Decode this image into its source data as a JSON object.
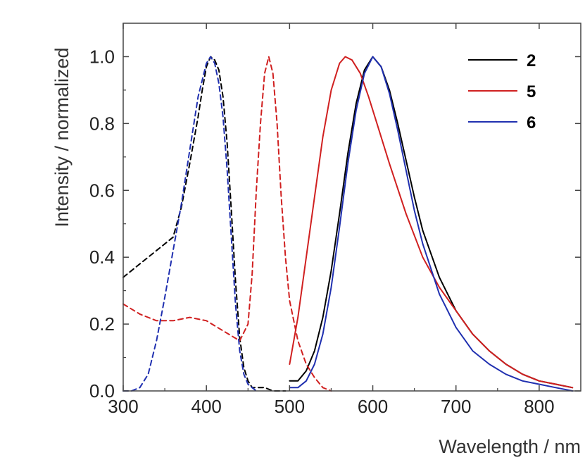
{
  "chart_data": {
    "type": "line",
    "title": "",
    "xlabel": "Wavelength / nm",
    "ylabel": "Intensity / normalized",
    "xlim": [
      300,
      850
    ],
    "ylim": [
      0,
      1.1
    ],
    "xticks": [
      300,
      400,
      500,
      600,
      700,
      800
    ],
    "xtick_labels": [
      "300",
      "400",
      "500",
      "600",
      "700",
      "800"
    ],
    "yticks": [
      0,
      0.2,
      0.4,
      0.6,
      0.8,
      1.0
    ],
    "ytick_labels": [
      "0.0",
      "0.2",
      "0.4",
      "0.6",
      "0.8",
      "1.0"
    ],
    "grid": false,
    "legend_position": "top-right",
    "series": [
      {
        "name": "2",
        "label": "2",
        "color": "#000000",
        "kind": "absorption",
        "dashed": true,
        "x": [
          300,
          320,
          340,
          360,
          370,
          380,
          390,
          395,
          400,
          405,
          410,
          415,
          420,
          425,
          430,
          435,
          440,
          445,
          450,
          455,
          460,
          470,
          480,
          490,
          495
        ],
        "y": [
          0.34,
          0.38,
          0.42,
          0.46,
          0.55,
          0.68,
          0.82,
          0.9,
          0.97,
          1.0,
          0.99,
          0.96,
          0.88,
          0.74,
          0.54,
          0.33,
          0.16,
          0.07,
          0.03,
          0.01,
          0.01,
          0.01,
          0.0,
          0.0,
          0.0
        ]
      },
      {
        "name": "2",
        "label": "2",
        "color": "#000000",
        "kind": "emission",
        "dashed": false,
        "x": [
          500,
          510,
          520,
          530,
          540,
          550,
          560,
          570,
          580,
          590,
          600,
          610,
          620,
          630,
          640,
          650,
          660,
          680,
          700,
          720,
          740,
          760,
          780,
          800,
          820,
          840
        ],
        "y": [
          0.03,
          0.03,
          0.06,
          0.12,
          0.22,
          0.36,
          0.53,
          0.71,
          0.86,
          0.96,
          1.0,
          0.97,
          0.9,
          0.8,
          0.69,
          0.58,
          0.48,
          0.34,
          0.24,
          0.17,
          0.12,
          0.08,
          0.05,
          0.03,
          0.02,
          0.01
        ]
      },
      {
        "name": "5",
        "label": "5",
        "color": "#d02020",
        "kind": "absorption",
        "dashed": true,
        "x": [
          300,
          320,
          340,
          360,
          380,
          400,
          420,
          440,
          450,
          455,
          460,
          465,
          470,
          475,
          480,
          485,
          490,
          495,
          500,
          510,
          520,
          530,
          540,
          550
        ],
        "y": [
          0.26,
          0.23,
          0.21,
          0.21,
          0.22,
          0.21,
          0.18,
          0.15,
          0.2,
          0.35,
          0.6,
          0.8,
          0.95,
          1.0,
          0.95,
          0.8,
          0.58,
          0.4,
          0.27,
          0.15,
          0.08,
          0.04,
          0.01,
          0.0
        ]
      },
      {
        "name": "5",
        "label": "5",
        "color": "#d02020",
        "kind": "emission",
        "dashed": false,
        "x": [
          500,
          510,
          520,
          530,
          540,
          550,
          560,
          567,
          575,
          585,
          595,
          605,
          620,
          640,
          660,
          680,
          700,
          720,
          740,
          760,
          780,
          800,
          820,
          840
        ],
        "y": [
          0.08,
          0.22,
          0.4,
          0.58,
          0.76,
          0.9,
          0.98,
          1.0,
          0.99,
          0.95,
          0.88,
          0.8,
          0.68,
          0.53,
          0.4,
          0.31,
          0.24,
          0.17,
          0.12,
          0.08,
          0.05,
          0.03,
          0.02,
          0.01
        ]
      },
      {
        "name": "6",
        "label": "6",
        "color": "#2030b0",
        "kind": "absorption",
        "dashed": true,
        "x": [
          300,
          310,
          320,
          330,
          340,
          350,
          360,
          370,
          380,
          390,
          400,
          405,
          410,
          415,
          420,
          425,
          430,
          435,
          440,
          445,
          450,
          455,
          460
        ],
        "y": [
          0.0,
          0.0,
          0.01,
          0.05,
          0.15,
          0.28,
          0.42,
          0.56,
          0.72,
          0.88,
          0.98,
          1.0,
          0.98,
          0.92,
          0.82,
          0.66,
          0.46,
          0.26,
          0.12,
          0.05,
          0.02,
          0.01,
          0.0
        ]
      },
      {
        "name": "6",
        "label": "6",
        "color": "#2030b0",
        "kind": "emission",
        "dashed": false,
        "x": [
          500,
          510,
          520,
          530,
          540,
          550,
          560,
          570,
          580,
          590,
          600,
          610,
          620,
          630,
          640,
          650,
          660,
          680,
          700,
          720,
          740,
          760,
          780,
          800,
          820,
          840
        ],
        "y": [
          0.01,
          0.01,
          0.03,
          0.08,
          0.17,
          0.31,
          0.49,
          0.68,
          0.84,
          0.95,
          1.0,
          0.97,
          0.89,
          0.78,
          0.66,
          0.54,
          0.44,
          0.29,
          0.19,
          0.12,
          0.08,
          0.05,
          0.03,
          0.02,
          0.01,
          0.0
        ]
      }
    ],
    "legend": [
      {
        "label": "2",
        "color": "#000000"
      },
      {
        "label": "5",
        "color": "#d02020"
      },
      {
        "label": "6",
        "color": "#2030b0"
      }
    ]
  }
}
